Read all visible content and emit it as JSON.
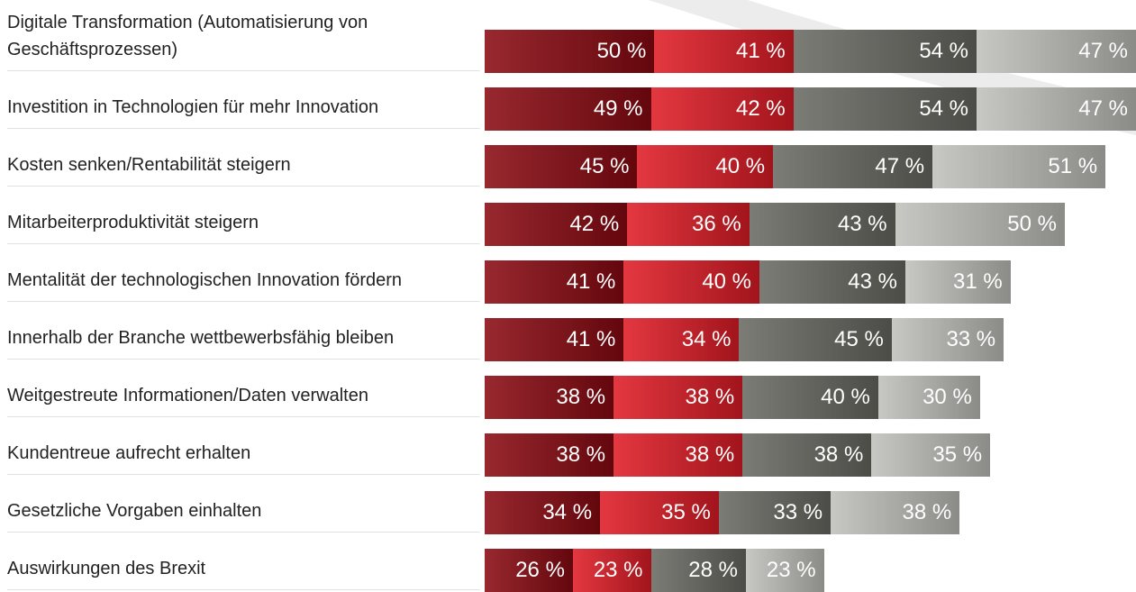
{
  "chart_data": {
    "type": "stacked-bar-horizontal",
    "categories": [
      "Digitale Transformation (Automatisierung von Geschäftsprozessen)",
      "Investition in Technologien für mehr Innovation",
      "Kosten senken/Rentabilität steigern",
      "Mitarbeiterproduktivität steigern",
      "Mentalität der technologischen Innovation fördern",
      "Innerhalb der Branche wettbewerbsfähig bleiben",
      "Weitgestreute Informationen/Daten verwalten",
      "Kundentreue aufrecht erhalten",
      "Gesetzliche Vorgaben einhalten",
      "Auswirkungen des Brexit"
    ],
    "series": [
      {
        "color": "#8a0a12",
        "values": [
          50,
          49,
          45,
          42,
          41,
          41,
          38,
          38,
          34,
          26
        ],
        "value_labels": [
          "50 %",
          "49 %",
          "45 %",
          "42 %",
          "41 %",
          "41 %",
          "38 %",
          "38 %",
          "34 %",
          "26 %"
        ]
      },
      {
        "color": "#e01c26",
        "values": [
          41,
          42,
          40,
          36,
          40,
          34,
          38,
          38,
          35,
          23
        ],
        "value_labels": [
          "41 %",
          "42 %",
          "40 %",
          "36 %",
          "40 %",
          "34 %",
          "38 %",
          "38 %",
          "35 %",
          "23 %"
        ]
      },
      {
        "color": "#6a6a63",
        "values": [
          54,
          54,
          47,
          43,
          43,
          45,
          40,
          38,
          33,
          28
        ],
        "value_labels": [
          "54 %",
          "54 %",
          "47 %",
          "43 %",
          "43 %",
          "45 %",
          "40 %",
          "38 %",
          "33 %",
          "28 %"
        ]
      },
      {
        "color": "#c0c0bb",
        "values": [
          47,
          47,
          51,
          50,
          31,
          33,
          30,
          35,
          38,
          23
        ],
        "value_labels": [
          "47 %",
          "47 %",
          "51 %",
          "50 %",
          "31 %",
          "33 %",
          "30 %",
          "35 %",
          "38 %",
          "23 %"
        ]
      }
    ]
  }
}
